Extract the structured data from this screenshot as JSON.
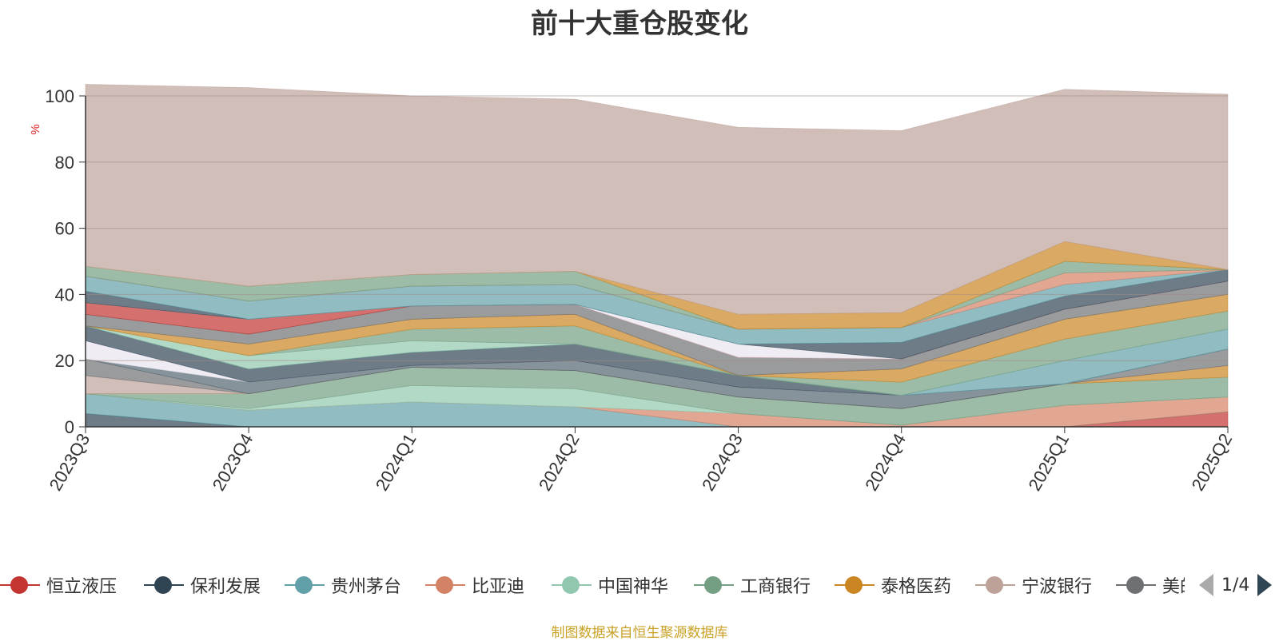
{
  "chart": {
    "title": "前十大重仓股变化",
    "y_unit": "%",
    "source_note": "制图数据来自恒生聚源数据库",
    "legend_page": "1/4"
  },
  "legend": [
    {
      "name": "恒立液压",
      "color": "#c23531"
    },
    {
      "name": "保利发展",
      "color": "#2f4554"
    },
    {
      "name": "贵州茅台",
      "color": "#61a0a8"
    },
    {
      "name": "比亚迪",
      "color": "#d48265"
    },
    {
      "name": "中国神华",
      "color": "#91c7ae"
    },
    {
      "name": "工商银行",
      "color": "#749f83"
    },
    {
      "name": "泰格医药",
      "color": "#ca8622"
    },
    {
      "name": "宁波银行",
      "color": "#bda29a"
    },
    {
      "name": "美的集团",
      "color": "#6e7074"
    }
  ],
  "chart_data": {
    "type": "area",
    "stacked": true,
    "title": "前十大重仓股变化",
    "ylabel": "%",
    "ylim": [
      0,
      100
    ],
    "yticks": [
      0,
      20,
      40,
      60,
      80,
      100
    ],
    "grid": true,
    "legend_position": "bottom",
    "categories": [
      "2023Q3",
      "2023Q4",
      "2024Q1",
      "2024Q2",
      "2024Q3",
      "2024Q4",
      "2025Q1",
      "2025Q2"
    ],
    "series": [
      {
        "name": "恒立液压",
        "color": "#c23531",
        "values": [
          0,
          0,
          0,
          0,
          0,
          0,
          0,
          4.5
        ]
      },
      {
        "name": "保利发展",
        "color": "#2f4554",
        "values": [
          4,
          0,
          0,
          0,
          0,
          0,
          0,
          0
        ]
      },
      {
        "name": "贵州茅台",
        "color": "#61a0a8",
        "values": [
          6,
          5,
          7.5,
          6,
          0,
          0,
          0,
          0
        ]
      },
      {
        "name": "比亚迪",
        "color": "#d48265",
        "values": [
          0,
          0,
          0,
          0,
          4,
          0.5,
          6.5,
          4.5
        ]
      },
      {
        "name": "中国神华",
        "color": "#91c7ae",
        "values": [
          0,
          0.5,
          5,
          5.5,
          0,
          0,
          0,
          0
        ]
      },
      {
        "name": "工商银行",
        "color": "#749f83",
        "values": [
          0,
          4.5,
          5.5,
          5.5,
          5,
          5,
          6.5,
          6
        ]
      },
      {
        "name": "泰格医药",
        "color": "#ca8622",
        "values": [
          0,
          0,
          0,
          0,
          0,
          0,
          0,
          3.5
        ]
      },
      {
        "name": "宁波银行",
        "color": "#bda29a",
        "values": [
          5.5,
          0,
          0,
          0,
          0,
          0,
          0,
          0
        ]
      },
      {
        "name": "美的集团",
        "color": "#6e7074",
        "values": [
          5,
          0,
          0,
          0,
          0,
          0,
          0,
          5
        ]
      },
      {
        "name": "",
        "color": "#546570",
        "values": [
          0,
          3.5,
          0.5,
          3,
          3,
          4,
          0,
          0
        ]
      },
      {
        "name": "",
        "color": "#e8e4ee",
        "values": [
          5.5,
          0,
          0,
          0,
          0,
          0,
          0,
          0
        ]
      },
      {
        "name": "",
        "color": "#2f4554",
        "values": [
          4.5,
          4,
          4,
          5,
          3.5,
          0,
          0,
          0
        ]
      },
      {
        "name": "",
        "color": "#61a0a8",
        "values": [
          0,
          0,
          0,
          0,
          0,
          0,
          7,
          6
        ]
      },
      {
        "name": "",
        "color": "#91c7ae",
        "values": [
          0,
          4,
          3.5,
          0,
          0,
          0,
          0,
          0
        ]
      },
      {
        "name": "",
        "color": "#749f83",
        "values": [
          0,
          0,
          3.5,
          5.5,
          0,
          4,
          6.5,
          5.5
        ]
      },
      {
        "name": "",
        "color": "#ca8622",
        "values": [
          0,
          3.5,
          3,
          3.5,
          0,
          4,
          6,
          5
        ]
      },
      {
        "name": "",
        "color": "#6e7074",
        "values": [
          3.5,
          3,
          4,
          3,
          5.5,
          3,
          3,
          4
        ]
      },
      {
        "name": "",
        "color": "#c23531",
        "values": [
          3.5,
          4.5,
          0,
          0,
          0,
          0,
          0,
          0
        ]
      },
      {
        "name": "",
        "color": "#e8e4ee",
        "values": [
          0,
          0,
          0,
          0,
          4,
          0,
          0,
          0
        ]
      },
      {
        "name": "",
        "color": "#2f4554",
        "values": [
          3.5,
          0,
          0,
          0,
          0,
          5,
          4,
          3.5
        ]
      },
      {
        "name": "",
        "color": "#61a0a8",
        "values": [
          4.5,
          5.5,
          6,
          6,
          4.5,
          4.5,
          3.5,
          0
        ]
      },
      {
        "name": "",
        "color": "#d48265",
        "values": [
          0,
          0,
          0,
          0,
          0,
          0,
          3.5,
          0
        ]
      },
      {
        "name": "",
        "color": "#749f83",
        "values": [
          3,
          4.5,
          3.5,
          4,
          0,
          0,
          3.5,
          0
        ]
      },
      {
        "name": "",
        "color": "#ca8622",
        "values": [
          0,
          0,
          0,
          0,
          4.5,
          4.5,
          6,
          0
        ]
      },
      {
        "name": "",
        "color": "#bda29a",
        "values": [
          55,
          60,
          54,
          52,
          56.5,
          55,
          46,
          53
        ]
      }
    ]
  }
}
